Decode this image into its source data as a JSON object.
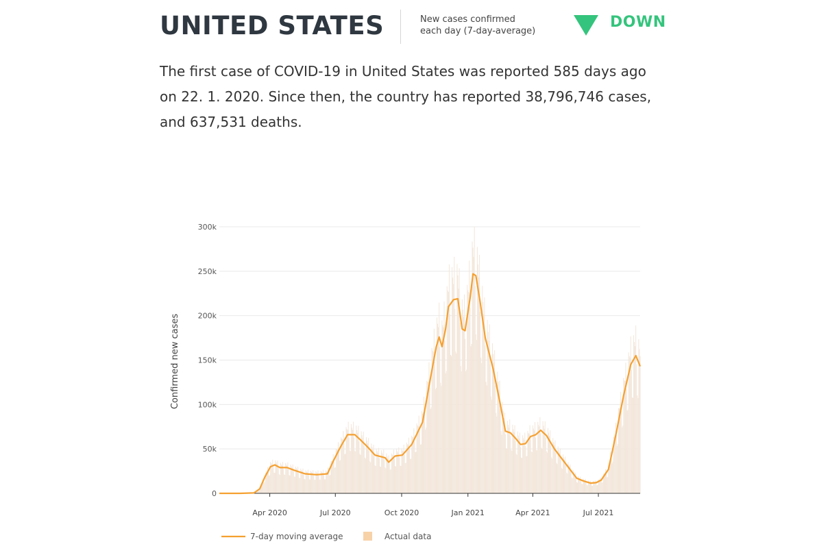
{
  "header": {
    "country": "UNITED STATES",
    "metric_line1": "New cases confirmed",
    "metric_line2": "each day (7-day-average)",
    "trend_label": "DOWN",
    "trend_icon": "triangle-down-icon",
    "trend_color": "#35c47d"
  },
  "summary": "The first case of COVID-19 in United States was reported 585 days ago on 22. 1. 2020. Since then, the country has reported 38,796,746 cases, and 637,531 deaths.",
  "colors": {
    "line": "#f5a030",
    "bars": "#f3e6da",
    "legend_bar": "#f7d2a8",
    "grid": "#e9e9e9",
    "axis": "#333333"
  },
  "chart_data": {
    "type": "line",
    "ylabel": "Confirmed new cases",
    "xlabel": "",
    "ylim": [
      0,
      300000
    ],
    "y_ticks": [
      "0",
      "50k",
      "100k",
      "150k",
      "200k",
      "250k",
      "300k"
    ],
    "y_tick_values": [
      0,
      50000,
      100000,
      150000,
      200000,
      250000,
      300000
    ],
    "x_ticks": [
      "Apr 2020",
      "Jul 2020",
      "Oct 2020",
      "Jan 2021",
      "Apr 2021",
      "Jul 2021"
    ],
    "x_tick_dates": [
      "2020-04-01",
      "2020-07-01",
      "2020-10-01",
      "2021-01-01",
      "2021-04-01",
      "2021-07-01"
    ],
    "xlim": [
      "2020-01-22",
      "2021-08-28"
    ],
    "grid": true,
    "legend_position": "bottom",
    "series": [
      {
        "name": "7-day moving average",
        "style": "line",
        "points": [
          [
            "2020-01-22",
            0
          ],
          [
            "2020-02-20",
            0
          ],
          [
            "2020-03-10",
            500
          ],
          [
            "2020-03-18",
            5000
          ],
          [
            "2020-03-25",
            18000
          ],
          [
            "2020-04-02",
            30000
          ],
          [
            "2020-04-08",
            32000
          ],
          [
            "2020-04-15",
            29000
          ],
          [
            "2020-04-25",
            29000
          ],
          [
            "2020-05-05",
            26000
          ],
          [
            "2020-05-20",
            22000
          ],
          [
            "2020-06-05",
            21000
          ],
          [
            "2020-06-20",
            22000
          ],
          [
            "2020-06-28",
            36000
          ],
          [
            "2020-07-08",
            52000
          ],
          [
            "2020-07-18",
            66000
          ],
          [
            "2020-07-28",
            66000
          ],
          [
            "2020-08-05",
            60000
          ],
          [
            "2020-08-15",
            52000
          ],
          [
            "2020-08-25",
            43000
          ],
          [
            "2020-09-08",
            40000
          ],
          [
            "2020-09-13",
            35000
          ],
          [
            "2020-09-22",
            42000
          ],
          [
            "2020-10-02",
            43000
          ],
          [
            "2020-10-15",
            55000
          ],
          [
            "2020-10-30",
            80000
          ],
          [
            "2020-11-10",
            130000
          ],
          [
            "2020-11-18",
            165000
          ],
          [
            "2020-11-22",
            176000
          ],
          [
            "2020-11-26",
            165000
          ],
          [
            "2020-12-01",
            185000
          ],
          [
            "2020-12-05",
            210000
          ],
          [
            "2020-12-12",
            218000
          ],
          [
            "2020-12-18",
            219000
          ],
          [
            "2020-12-24",
            185000
          ],
          [
            "2020-12-28",
            183000
          ],
          [
            "2021-01-04",
            220000
          ],
          [
            "2021-01-08",
            247000
          ],
          [
            "2021-01-12",
            245000
          ],
          [
            "2021-01-18",
            215000
          ],
          [
            "2021-01-25",
            175000
          ],
          [
            "2021-02-05",
            140000
          ],
          [
            "2021-02-15",
            100000
          ],
          [
            "2021-02-22",
            70000
          ],
          [
            "2021-03-01",
            68000
          ],
          [
            "2021-03-08",
            62000
          ],
          [
            "2021-03-15",
            55000
          ],
          [
            "2021-03-22",
            56000
          ],
          [
            "2021-03-29",
            64000
          ],
          [
            "2021-04-05",
            66000
          ],
          [
            "2021-04-12",
            71000
          ],
          [
            "2021-04-20",
            65000
          ],
          [
            "2021-05-01",
            50000
          ],
          [
            "2021-05-15",
            35000
          ],
          [
            "2021-06-01",
            17000
          ],
          [
            "2021-06-10",
            14000
          ],
          [
            "2021-06-20",
            11500
          ],
          [
            "2021-06-28",
            12000
          ],
          [
            "2021-07-05",
            15000
          ],
          [
            "2021-07-15",
            27000
          ],
          [
            "2021-07-25",
            65000
          ],
          [
            "2021-08-05",
            110000
          ],
          [
            "2021-08-15",
            145000
          ],
          [
            "2021-08-22",
            155000
          ],
          [
            "2021-08-28",
            143000
          ]
        ]
      },
      {
        "name": "Actual data",
        "style": "bar"
      }
    ]
  }
}
